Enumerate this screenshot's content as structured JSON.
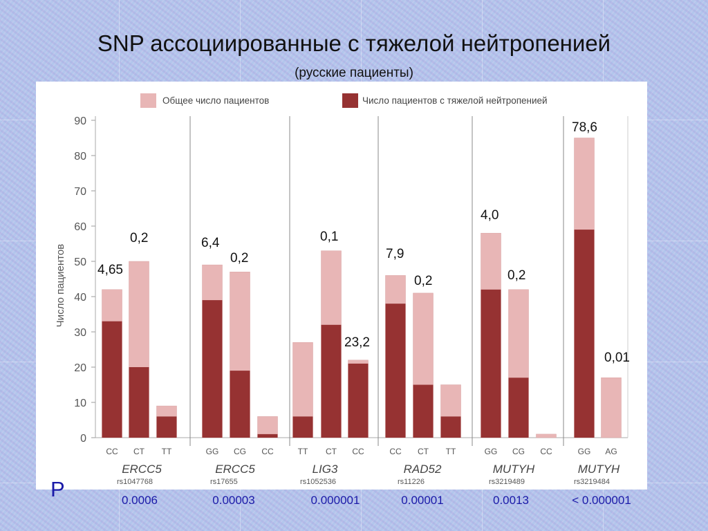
{
  "title": "SNP ассоциированные с тяжелой нейтропенией",
  "subtitle": "(русские пациенты)",
  "p_label": "P",
  "p_values": [
    "0.0006",
    "0.00003",
    "0.000001",
    "0.00001",
    "0.0013",
    "< 0.000001"
  ],
  "colors": {
    "total": "#e8b6b6",
    "severe": "#963232"
  },
  "chart_data": {
    "type": "bar",
    "ylabel": "Число пациентов",
    "ylim": [
      0,
      90
    ],
    "yticks": [
      0,
      10,
      20,
      30,
      40,
      50,
      60,
      70,
      80,
      90
    ],
    "legend": [
      "Общее число пациентов",
      "Число пациентов с тяжелой нейтропенией"
    ],
    "legend_position": "top",
    "groups": [
      {
        "gene": "ERCC5",
        "snp": "rs1047768",
        "genotypes": [
          "CC",
          "CT",
          "TT"
        ],
        "total": [
          42,
          50,
          9
        ],
        "severe": [
          33,
          20,
          6
        ],
        "labels": [
          "4,65",
          "0,2",
          ""
        ]
      },
      {
        "gene": "ERCC5",
        "snp": "rs17655",
        "genotypes": [
          "GG",
          "CG",
          "CC"
        ],
        "total": [
          49,
          47,
          6
        ],
        "severe": [
          39,
          19,
          1
        ],
        "labels": [
          "6,4",
          "0,2",
          ""
        ]
      },
      {
        "gene": "LIG3",
        "snp": "rs1052536",
        "genotypes": [
          "TT",
          "CT",
          "CC"
        ],
        "total": [
          27,
          53,
          22
        ],
        "severe": [
          6,
          32,
          21
        ],
        "labels": [
          "",
          "0,1",
          "23,2"
        ]
      },
      {
        "gene": "RAD52",
        "snp": "rs11226",
        "genotypes": [
          "CC",
          "CT",
          "TT"
        ],
        "total": [
          46,
          41,
          15
        ],
        "severe": [
          38,
          15,
          6
        ],
        "labels": [
          "7,9",
          "0,2",
          ""
        ]
      },
      {
        "gene": "MUTYH",
        "snp": "rs3219489",
        "genotypes": [
          "GG",
          "CG",
          "CC"
        ],
        "total": [
          58,
          42,
          1
        ],
        "severe": [
          42,
          17,
          0
        ],
        "labels": [
          "4,0",
          "0,2",
          ""
        ]
      },
      {
        "gene": "MUTYH",
        "snp": "rs3219484",
        "genotypes": [
          "GG",
          "AG"
        ],
        "total": [
          85,
          17
        ],
        "severe": [
          59,
          0
        ],
        "labels": [
          "78,6",
          "0,01"
        ]
      }
    ]
  }
}
